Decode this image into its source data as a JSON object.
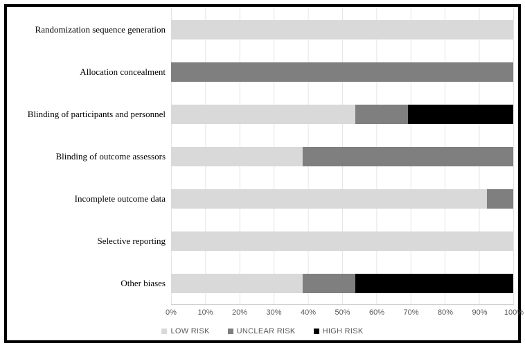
{
  "chart_data": {
    "type": "bar",
    "orientation": "horizontal",
    "stacked": true,
    "title": "",
    "xlabel": "",
    "ylabel": "",
    "categories": [
      "Randomization sequence generation",
      "Allocation concealment",
      "Blinding of participants and personnel",
      "Blinding of outcome assessors",
      "Incomplete outcome data",
      "Selective reporting",
      "Other biases"
    ],
    "series": [
      {
        "name": "LOW RISK",
        "color": "#d9d9d9",
        "values": [
          100,
          0,
          53.8,
          38.5,
          92.3,
          100,
          38.5
        ]
      },
      {
        "name": "UNCLEAR RISK",
        "color": "#7f7f7f",
        "values": [
          0,
          100,
          15.4,
          61.5,
          7.7,
          0,
          15.4
        ]
      },
      {
        "name": "HIGH RISK",
        "color": "#000000",
        "values": [
          0,
          0,
          30.8,
          0,
          0,
          0,
          46.2
        ]
      }
    ],
    "x_ticks": [
      "0%",
      "10%",
      "20%",
      "30%",
      "40%",
      "50%",
      "60%",
      "70%",
      "80%",
      "90%",
      "100%"
    ],
    "xlim": [
      0,
      100
    ],
    "grid": "vertical",
    "legend_position": "bottom"
  }
}
